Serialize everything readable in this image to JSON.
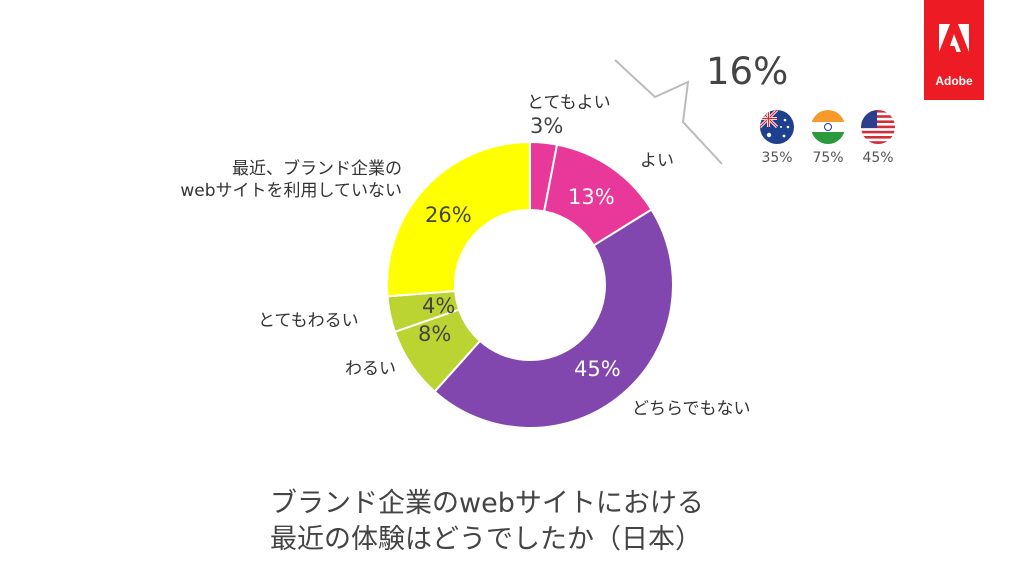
{
  "chart_data": {
    "type": "pie",
    "title": "ブランド企業のwebサイトにおける 最近の体験はどうでしたか（日本）",
    "title_lines": [
      "ブランド企業のwebサイトにおける",
      "最近の体験はどうでしたか（日本）"
    ],
    "donut": true,
    "categories": [
      "とてもよい",
      "よい",
      "どちらでもない",
      "わるい",
      "とてもわるい",
      "最近、ブランド企業のwebサイトを利用していない"
    ],
    "category_lines": [
      [
        "とてもよい"
      ],
      [
        "よい"
      ],
      [
        "どちらでもない"
      ],
      [
        "わるい"
      ],
      [
        "とてもわるい"
      ],
      [
        "最近、ブランド企業の",
        "webサイトを利用していない"
      ]
    ],
    "values": [
      3,
      13,
      45,
      8,
      4,
      26
    ],
    "value_labels": [
      "3%",
      "13%",
      "45%",
      "8%",
      "4%",
      "26%"
    ],
    "colors": [
      "#e8399a",
      "#e8399a",
      "#8246af",
      "#bcd432",
      "#bcd432",
      "#ffff00"
    ],
    "callout": {
      "value": "16%",
      "countries": [
        {
          "flag": "australia-flag",
          "value": "35%"
        },
        {
          "flag": "india-flag",
          "value": "75%"
        },
        {
          "flag": "usa-flag",
          "value": "45%"
        }
      ]
    }
  },
  "brand": {
    "logo_text": "Adobe",
    "color": "#ed1c24"
  }
}
